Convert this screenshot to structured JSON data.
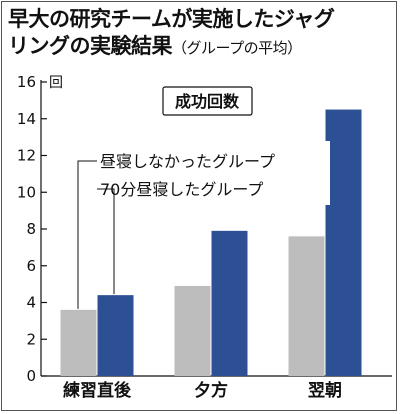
{
  "title_line1": "早大の研究チームが実施したジャグ",
  "title_line2": "リングの実験結果",
  "title_sub": "（グループの平均）",
  "chart_data": {
    "type": "bar",
    "title": "成功回数",
    "unit": "回",
    "categories": [
      "練習直後",
      "夕方",
      "翌朝"
    ],
    "series": [
      {
        "name": "昼寝しなかったグループ",
        "color": "#bdbdbd",
        "values": [
          3.6,
          4.9,
          7.6
        ]
      },
      {
        "name": "70分昼寝したグループ",
        "color": "#2d4f93",
        "values": [
          4.4,
          7.9,
          14.5
        ]
      }
    ],
    "yticks": [
      0,
      2,
      4,
      6,
      8,
      10,
      12,
      14,
      16
    ],
    "ylim": [
      0,
      16
    ],
    "grid": false,
    "legend": "top-left"
  }
}
